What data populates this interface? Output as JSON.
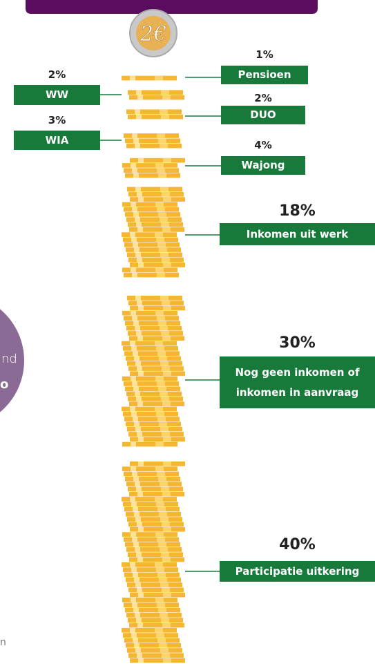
{
  "chart_data": {
    "type": "coin-stack",
    "categories": [
      "Pensioen",
      "WW",
      "DUO",
      "WIA",
      "Wajong",
      "Inkomen uit werk",
      "Nog geen inkomen of inkomen in aanvraag",
      "Participatie uitkering"
    ],
    "values": [
      1,
      2,
      2,
      3,
      4,
      18,
      30,
      40
    ],
    "value_labels": [
      "1%",
      "2%",
      "2%",
      "3%",
      "4%",
      "18%",
      "30%",
      "40%"
    ],
    "icon_label": "2€",
    "annotations": [
      "nd",
      "o",
      "n"
    ],
    "color": "#f5b731",
    "label_color": "#17793a"
  }
}
